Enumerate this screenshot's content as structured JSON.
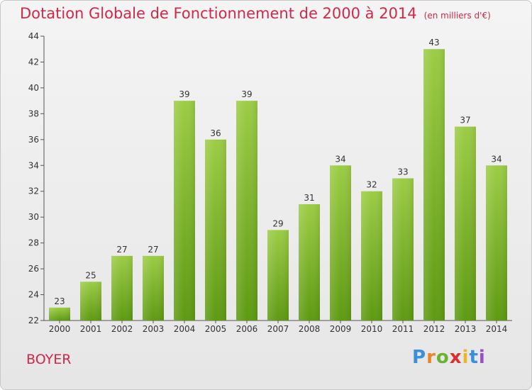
{
  "header": {
    "title": "Dotation Globale de Fonctionnement de 2000 à 2014",
    "unit": "(en milliers d'€)"
  },
  "footer": {
    "commune": "BOYER",
    "logo_letters": [
      "P",
      "r",
      "o",
      "x",
      "i",
      "t",
      "i"
    ],
    "logo_colors": [
      "#3a8fd6",
      "#e8862a",
      "#6bb32e",
      "#d93030",
      "#e8b82a",
      "#3a8fd6",
      "#9b4fc4"
    ]
  },
  "colors": {
    "bar_top": "#9ccc45",
    "bar_bottom": "#5e9a12",
    "accent": "#d0284a",
    "text": "#333333"
  },
  "chart_data": {
    "type": "bar",
    "categories": [
      "2000",
      "2001",
      "2002",
      "2003",
      "2004",
      "2005",
      "2006",
      "2007",
      "2008",
      "2009",
      "2010",
      "2011",
      "2012",
      "2013",
      "2014"
    ],
    "values": [
      23,
      25,
      27,
      27,
      39,
      36,
      39,
      29,
      31,
      34,
      32,
      33,
      43,
      37,
      34
    ],
    "ylim": [
      22,
      44
    ],
    "yticks": [
      22,
      24,
      26,
      28,
      30,
      32,
      34,
      36,
      38,
      40,
      42,
      44
    ],
    "grid": false
  }
}
